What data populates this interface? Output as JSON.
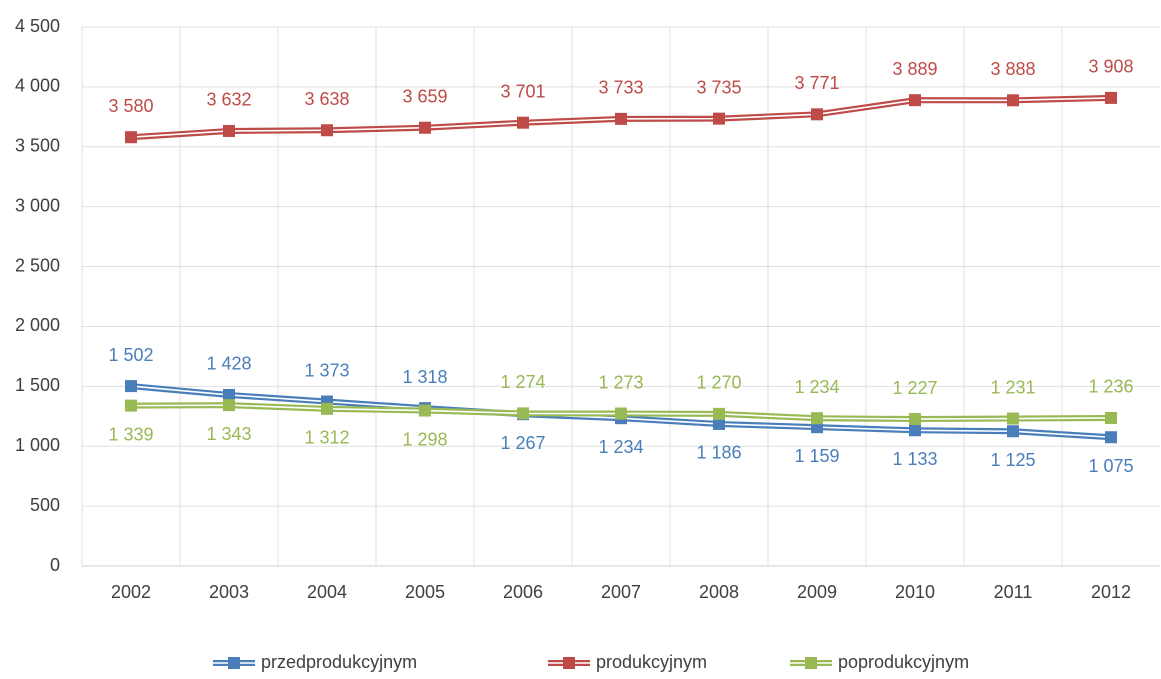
{
  "chart_data": {
    "type": "line",
    "categories": [
      "2002",
      "2003",
      "2004",
      "2005",
      "2006",
      "2007",
      "2008",
      "2009",
      "2010",
      "2011",
      "2012"
    ],
    "series": [
      {
        "name": "przedprodukcyjnym",
        "color": "#4a7ebb",
        "values": [
          1502,
          1428,
          1373,
          1318,
          1267,
          1234,
          1186,
          1159,
          1133,
          1125,
          1075
        ],
        "value_labels": [
          "1 502",
          "1 428",
          "1 373",
          "1 318",
          "1 267",
          "1 234",
          "1 186",
          "1 159",
          "1 133",
          "1 125",
          "1 075"
        ]
      },
      {
        "name": "produkcyjnym",
        "color": "#be4b48",
        "values": [
          3580,
          3632,
          3638,
          3659,
          3701,
          3733,
          3735,
          3771,
          3889,
          3888,
          3908
        ],
        "value_labels": [
          "3 580",
          "3 632",
          "3 638",
          "3 659",
          "3 701",
          "3 733",
          "3 735",
          "3 771",
          "3 889",
          "3 888",
          "3 908"
        ]
      },
      {
        "name": "poprodukcyjnym",
        "color": "#98b954",
        "values": [
          1339,
          1343,
          1312,
          1298,
          1274,
          1273,
          1270,
          1234,
          1227,
          1231,
          1236
        ],
        "value_labels": [
          "1 339",
          "1 343",
          "1 312",
          "1 298",
          "1 274",
          "1 273",
          "1 270",
          "1 234",
          "1 227",
          "1 231",
          "1 236"
        ]
      }
    ],
    "ylim": [
      0,
      4500
    ],
    "yticks": [
      0,
      500,
      {
        "value": 1000,
        "label": "1 000"
      },
      {
        "value": 1500,
        "label": "1 500"
      },
      {
        "value": 2000,
        "label": "2 000"
      },
      {
        "value": 2500,
        "label": "2 500"
      },
      {
        "value": 3000,
        "label": "3 000"
      },
      {
        "value": 3500,
        "label": "3 500"
      },
      {
        "value": 4000,
        "label": "4 000"
      },
      {
        "value": 4500,
        "label": "4 500"
      }
    ],
    "grid": true,
    "legend": "bottom"
  }
}
